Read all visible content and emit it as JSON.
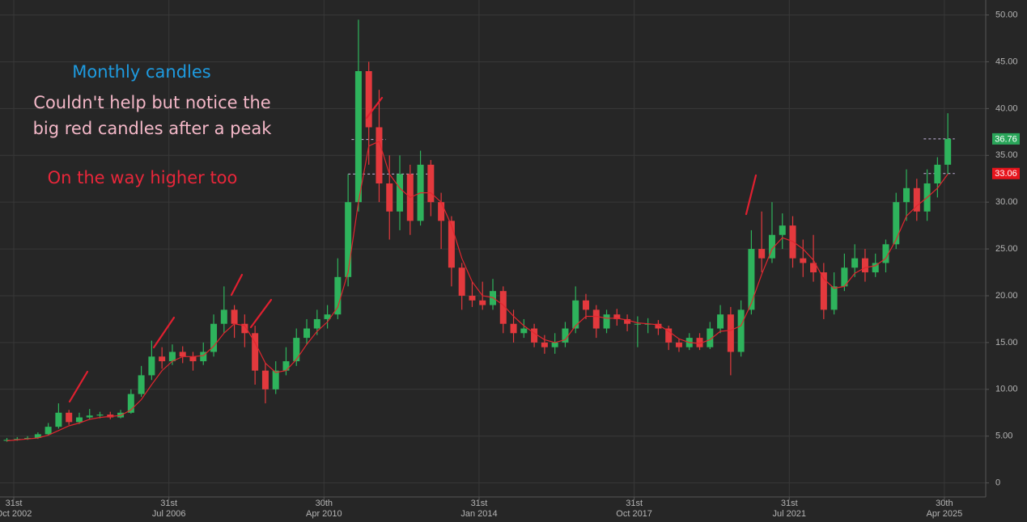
{
  "chart_data": {
    "type": "candlestick",
    "x": [
      "2002-07",
      "2002-10",
      "2003-01",
      "2003-04",
      "2003-07",
      "2003-10",
      "2004-01",
      "2004-04",
      "2004-07",
      "2004-10",
      "2005-01",
      "2005-04",
      "2005-07",
      "2005-10",
      "2006-01",
      "2006-04",
      "2006-07",
      "2006-10",
      "2007-01",
      "2007-04",
      "2007-07",
      "2007-10",
      "2008-01",
      "2008-04",
      "2008-07",
      "2008-10",
      "2009-01",
      "2009-04",
      "2009-07",
      "2009-10",
      "2010-01",
      "2010-04",
      "2010-07",
      "2010-10",
      "2011-01",
      "2011-04",
      "2011-07",
      "2011-10",
      "2012-01",
      "2012-04",
      "2012-07",
      "2012-10",
      "2013-01",
      "2013-04",
      "2013-07",
      "2013-10",
      "2014-01",
      "2014-04",
      "2014-07",
      "2014-10",
      "2015-01",
      "2015-04",
      "2015-07",
      "2015-10",
      "2016-01",
      "2016-04",
      "2016-07",
      "2016-10",
      "2017-01",
      "2017-04",
      "2017-07",
      "2017-10",
      "2018-01",
      "2018-04",
      "2018-07",
      "2018-10",
      "2019-01",
      "2019-04",
      "2019-07",
      "2019-10",
      "2020-01",
      "2020-04",
      "2020-07",
      "2020-10",
      "2021-01",
      "2021-04",
      "2021-07",
      "2021-10",
      "2022-01",
      "2022-04",
      "2022-07",
      "2022-10",
      "2023-01",
      "2023-04",
      "2023-07",
      "2023-10",
      "2024-01",
      "2024-04",
      "2024-07",
      "2024-10",
      "2025-01",
      "2025-04"
    ],
    "open": [
      4.5,
      4.6,
      4.7,
      4.8,
      5.2,
      6.0,
      7.5,
      6.5,
      7.0,
      7.2,
      7.3,
      7.0,
      7.5,
      9.5,
      11.5,
      13.5,
      13.0,
      14.0,
      13.5,
      13.0,
      14.0,
      17.0,
      18.5,
      17.0,
      16.0,
      12.0,
      10.0,
      12.0,
      13.0,
      15.5,
      16.5,
      17.5,
      18.0,
      22.0,
      30.0,
      44.0,
      38.0,
      32.0,
      29.0,
      33.0,
      28.0,
      34.0,
      30.0,
      28.0,
      23.0,
      20.0,
      19.5,
      19.0,
      20.5,
      17.0,
      16.0,
      16.5,
      15.0,
      14.5,
      15.0,
      16.5,
      19.5,
      18.5,
      16.5,
      18.0,
      17.5,
      17.0,
      17.0,
      17.0,
      16.5,
      15.0,
      14.5,
      15.5,
      14.5,
      16.5,
      18.0,
      14.0,
      18.5,
      25.0,
      24.0,
      26.5,
      27.5,
      24.0,
      23.5,
      22.5,
      18.5,
      21.0,
      23.0,
      24.0,
      22.5,
      23.5,
      25.5,
      30.0,
      31.5,
      29.0,
      32.0,
      34.0
    ],
    "high": [
      4.8,
      4.9,
      5.0,
      5.4,
      6.4,
      8.5,
      7.8,
      7.5,
      7.9,
      7.6,
      7.6,
      7.8,
      10.0,
      12.5,
      15.2,
      14.5,
      14.8,
      14.6,
      14.0,
      15.0,
      18.0,
      21.0,
      19.0,
      18.0,
      16.8,
      12.8,
      13.0,
      14.5,
      16.5,
      17.5,
      18.5,
      19.0,
      24.0,
      33.0,
      49.5,
      45.0,
      42.0,
      35.0,
      35.0,
      34.0,
      35.5,
      34.5,
      31.0,
      28.5,
      23.5,
      21.5,
      21.5,
      21.8,
      21.0,
      18.5,
      17.5,
      17.0,
      15.8,
      16.0,
      17.2,
      21.0,
      20.2,
      19.0,
      18.5,
      18.6,
      18.0,
      17.8,
      17.6,
      17.4,
      16.8,
      15.4,
      16.0,
      16.0,
      17.2,
      19.0,
      18.8,
      19.5,
      27.0,
      29.0,
      30.0,
      28.8,
      28.5,
      26.0,
      26.5,
      23.5,
      22.5,
      24.5,
      25.5,
      25.0,
      24.5,
      26.0,
      31.0,
      33.5,
      32.5,
      33.5,
      34.8,
      39.5
    ],
    "low": [
      4.4,
      4.5,
      4.6,
      4.7,
      5.1,
      5.8,
      6.2,
      6.3,
      6.8,
      6.9,
      6.8,
      6.9,
      7.4,
      9.2,
      11.0,
      12.2,
      12.6,
      12.8,
      12.0,
      12.6,
      13.5,
      16.0,
      15.5,
      14.5,
      10.5,
      8.5,
      9.5,
      11.5,
      12.5,
      14.8,
      15.8,
      16.5,
      17.5,
      21.0,
      29.0,
      34.0,
      30.0,
      26.0,
      27.0,
      26.5,
      27.5,
      28.5,
      25.0,
      21.0,
      18.5,
      18.8,
      18.5,
      18.5,
      16.0,
      15.0,
      15.5,
      14.5,
      13.8,
      13.8,
      14.5,
      16.0,
      17.5,
      15.5,
      16.0,
      16.8,
      16.2,
      14.5,
      16.0,
      15.8,
      14.2,
      14.0,
      14.2,
      14.2,
      14.3,
      16.0,
      11.5,
      13.5,
      18.0,
      22.5,
      23.5,
      25.0,
      23.0,
      22.0,
      21.5,
      17.5,
      18.0,
      20.5,
      22.0,
      21.5,
      22.0,
      22.5,
      25.0,
      28.0,
      28.0,
      28.0,
      30.5,
      33.0
    ],
    "close": [
      4.6,
      4.7,
      4.8,
      5.2,
      6.0,
      7.5,
      6.5,
      7.0,
      7.2,
      7.3,
      7.0,
      7.5,
      9.5,
      11.5,
      13.5,
      13.0,
      14.0,
      13.5,
      13.0,
      14.0,
      17.0,
      18.5,
      17.0,
      16.0,
      12.0,
      10.0,
      12.0,
      13.0,
      15.5,
      16.5,
      17.5,
      18.0,
      22.0,
      30.0,
      44.0,
      38.0,
      32.0,
      29.0,
      33.0,
      28.0,
      34.0,
      30.0,
      28.0,
      23.0,
      20.0,
      19.5,
      19.0,
      20.5,
      17.0,
      16.0,
      16.5,
      15.0,
      14.5,
      15.0,
      16.5,
      19.5,
      18.5,
      16.5,
      18.0,
      17.5,
      17.0,
      17.0,
      17.0,
      16.5,
      15.0,
      14.5,
      15.5,
      14.5,
      16.5,
      18.0,
      14.0,
      18.5,
      25.0,
      24.0,
      26.5,
      27.5,
      24.0,
      23.5,
      22.5,
      18.5,
      21.0,
      23.0,
      24.0,
      22.5,
      23.5,
      25.5,
      30.0,
      31.5,
      29.0,
      32.0,
      34.0,
      36.76
    ],
    "up_color": "#2eb35c",
    "down_color": "#e3393d",
    "ma": {
      "color": "#e0262f",
      "values": [
        4.5,
        4.6,
        4.7,
        4.8,
        5.1,
        5.6,
        6.1,
        6.4,
        6.8,
        7.0,
        7.1,
        7.2,
        7.8,
        8.9,
        10.5,
        12.0,
        13.0,
        13.5,
        13.5,
        13.6,
        14.6,
        16.0,
        17.0,
        16.8,
        15.0,
        12.8,
        11.8,
        12.0,
        13.2,
        14.8,
        16.2,
        17.2,
        18.8,
        22.5,
        30.0,
        36.0,
        36.5,
        33.0,
        31.5,
        30.5,
        31.0,
        31.0,
        30.0,
        27.5,
        24.0,
        21.5,
        20.0,
        19.8,
        19.0,
        17.8,
        16.8,
        16.0,
        15.3,
        15.0,
        15.3,
        16.8,
        17.8,
        17.8,
        17.6,
        17.6,
        17.4,
        17.1,
        17.0,
        16.9,
        16.2,
        15.4,
        15.0,
        14.9,
        15.3,
        16.2,
        16.3,
        16.8,
        19.2,
        22.3,
        25.0,
        26.2,
        25.8,
        25.0,
        23.8,
        21.8,
        20.8,
        21.0,
        22.4,
        23.0,
        23.2,
        24.0,
        26.0,
        28.5,
        29.6,
        30.5,
        31.5,
        33.0
      ]
    },
    "xlim": [
      "2002-06",
      "2026-04"
    ],
    "xticks": [
      {
        "value": "2002-10",
        "label": "31st Oct 2002"
      },
      {
        "value": "2006-07",
        "label": "31st Jul 2006"
      },
      {
        "value": "2010-04",
        "label": "30th Apr 2010"
      },
      {
        "value": "2014-01",
        "label": "31st Jan 2014"
      },
      {
        "value": "2017-10",
        "label": "31st Oct 2017"
      },
      {
        "value": "2021-07",
        "label": "31st Jul 2021"
      },
      {
        "value": "2025-04",
        "label": "30th Apr 2025"
      }
    ],
    "ylim": [
      -1.5,
      51.6
    ],
    "yticks": [
      0,
      {
        "value": 5,
        "label": "5.00"
      },
      {
        "value": 10,
        "label": "10.00"
      },
      {
        "value": 15,
        "label": "15.00"
      },
      {
        "value": 20,
        "label": "20.00"
      },
      {
        "value": 25,
        "label": "25.00"
      },
      {
        "value": 30,
        "label": "30.00"
      },
      {
        "value": 35,
        "label": "35.00"
      },
      {
        "value": 40,
        "label": "40.00"
      },
      {
        "value": 45,
        "label": "45.00"
      },
      {
        "value": 50,
        "label": "50.00"
      }
    ],
    "grid": true,
    "reference_lines": [
      {
        "value": 36.7,
        "from": "2010-12",
        "to": "2011-10"
      },
      {
        "value": 33.0,
        "from": "2010-11",
        "to": "2012-10"
      },
      {
        "value": 36.76,
        "from": "2024-10",
        "to": "2025-07"
      },
      {
        "value": 33.06,
        "from": "2024-10",
        "to": "2025-07"
      }
    ],
    "price_tags": [
      {
        "value": 36.76,
        "color": "#2aa65a"
      },
      {
        "value": 33.06,
        "color": "#e8141c"
      }
    ],
    "annotations": [
      {
        "text": "Monthly candles",
        "color": "#1e9be0"
      },
      {
        "text": "Couldn't help but notice the",
        "color": "#f4b8c8"
      },
      {
        "text": "big red candles after a peak",
        "color": "#f4b8c8"
      },
      {
        "text": "On the way higher too",
        "color": "#e8263a"
      }
    ]
  }
}
